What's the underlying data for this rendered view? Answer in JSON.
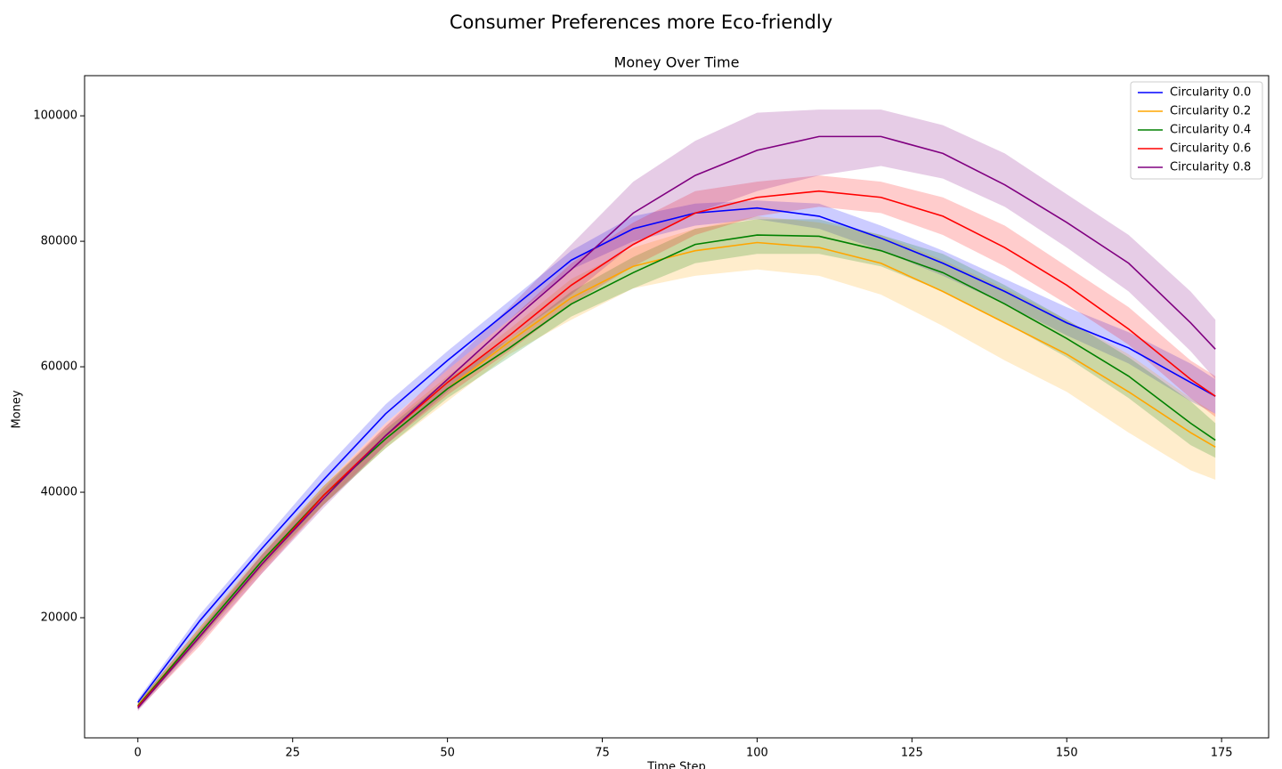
{
  "chart_data": {
    "type": "line",
    "title": "Consumer Preferences more Eco-friendly",
    "subtitle": "Money Over Time",
    "x_label": "Time Step",
    "y_label": "Money",
    "x": [
      0,
      10,
      20,
      30,
      40,
      50,
      60,
      70,
      80,
      90,
      100,
      110,
      120,
      130,
      140,
      150,
      160,
      170,
      174
    ],
    "series": [
      {
        "name": "Circularity 0.0",
        "color": "blue",
        "values": [
          6500,
          19500,
          31000,
          42000,
          52500,
          61000,
          69000,
          77000,
          82000,
          84500,
          85300,
          84000,
          80500,
          76500,
          72000,
          67000,
          63000,
          57500,
          55300
        ],
        "lower": [
          6000,
          18500,
          30000,
          41000,
          51000,
          59500,
          67500,
          75500,
          80000,
          82500,
          83500,
          82000,
          78500,
          74500,
          70000,
          65000,
          60500,
          54500,
          52500
        ],
        "upper": [
          7000,
          20500,
          32000,
          43500,
          54000,
          62500,
          70500,
          78500,
          84000,
          86000,
          86500,
          86000,
          82500,
          78500,
          74000,
          69500,
          65500,
          60500,
          58000
        ]
      },
      {
        "name": "Circularity 0.2",
        "color": "orange",
        "values": [
          6000,
          17500,
          29000,
          39500,
          48500,
          56500,
          64000,
          71000,
          76000,
          78500,
          79800,
          79000,
          76500,
          72000,
          67000,
          62000,
          56000,
          49500,
          47200
        ],
        "lower": [
          5500,
          16500,
          27500,
          38000,
          47000,
          54500,
          62000,
          67500,
          72500,
          74500,
          75500,
          74500,
          71500,
          66500,
          61000,
          56000,
          49500,
          43500,
          42000
        ],
        "upper": [
          6500,
          18500,
          30500,
          41000,
          50500,
          58500,
          66000,
          74000,
          79000,
          82000,
          84000,
          83000,
          81000,
          77000,
          72500,
          67500,
          62000,
          55000,
          52500
        ]
      },
      {
        "name": "Circularity 0.4",
        "color": "green",
        "values": [
          5900,
          17500,
          29000,
          39500,
          48500,
          56500,
          63000,
          70000,
          75000,
          79500,
          81000,
          80800,
          78500,
          75000,
          70000,
          64500,
          58500,
          51000,
          48300
        ],
        "lower": [
          5400,
          16500,
          28000,
          38000,
          47000,
          55000,
          61500,
          68000,
          72500,
          76500,
          78000,
          78000,
          76000,
          72000,
          67000,
          61500,
          55000,
          47500,
          45500
        ],
        "upper": [
          6400,
          18500,
          30000,
          41000,
          50000,
          58000,
          64500,
          72000,
          77500,
          82000,
          83500,
          83500,
          81000,
          78000,
          73000,
          67500,
          61500,
          54500,
          51000
        ]
      },
      {
        "name": "Circularity 0.6",
        "color": "red",
        "values": [
          5800,
          17000,
          28500,
          39500,
          49000,
          57500,
          65000,
          73000,
          79500,
          84500,
          87000,
          88000,
          87000,
          84000,
          79000,
          73000,
          66000,
          58000,
          55300
        ],
        "lower": [
          5300,
          15500,
          27000,
          38000,
          47500,
          55500,
          62500,
          70000,
          76000,
          81000,
          84000,
          85500,
          84500,
          81000,
          76000,
          70000,
          63500,
          55000,
          52000
        ],
        "upper": [
          6300,
          18500,
          30000,
          41000,
          51000,
          59500,
          67500,
          76500,
          83000,
          88000,
          89500,
          90500,
          89500,
          87000,
          82500,
          76000,
          69500,
          61000,
          58500
        ]
      },
      {
        "name": "Circularity 0.8",
        "color": "purple",
        "values": [
          5600,
          17000,
          28500,
          39000,
          49000,
          58000,
          67000,
          75500,
          84500,
          90500,
          94500,
          96700,
          96700,
          94000,
          89000,
          83000,
          76500,
          67000,
          62800
        ],
        "lower": [
          5100,
          16000,
          27000,
          37500,
          47500,
          56000,
          64500,
          71500,
          79500,
          84500,
          88000,
          90500,
          92000,
          90000,
          85500,
          79000,
          72000,
          62500,
          58000
        ],
        "upper": [
          6100,
          18000,
          30000,
          40500,
          50500,
          60000,
          69500,
          79500,
          89500,
          96000,
          100500,
          101000,
          101000,
          98500,
          94000,
          87500,
          81000,
          72000,
          67500
        ]
      }
    ],
    "xlim": [
      -8.6,
      182.6
    ],
    "ylim": [
      851,
      106400
    ],
    "xticks": [
      0,
      25,
      50,
      75,
      100,
      125,
      150,
      175
    ],
    "yticks": [
      20000,
      40000,
      60000,
      80000,
      100000
    ],
    "legend": "upper right"
  }
}
